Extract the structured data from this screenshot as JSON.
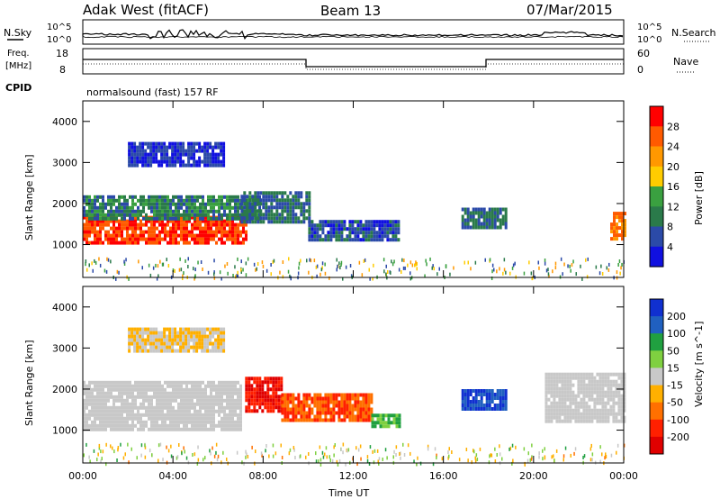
{
  "header": {
    "station": "Adak West (fitACF)",
    "beam": "Beam 13",
    "date": "07/Mar/2015"
  },
  "panel_labels": {
    "nsky": "N.Sky",
    "nsearch": "N.Search",
    "freq_line1": "Freq.",
    "freq_line2": "[MHz]",
    "nave": "Nave",
    "cpid": "CPID",
    "cpid_value": "normalsound (fast) 157 RF"
  },
  "noise_axis": {
    "left_ticks": [
      "10^5",
      "10^0"
    ],
    "right_ticks": [
      "10^5",
      "10^0"
    ]
  },
  "freq_axis": {
    "left_ticks": [
      "18",
      "8"
    ],
    "right_ticks": [
      "60",
      "0"
    ]
  },
  "chart_data": [
    {
      "type": "heatmap",
      "name": "power-panel",
      "ylabel": "Slant Range [km]",
      "yticks": [
        "4000",
        "3000",
        "2000",
        "1000"
      ],
      "ylim": [
        200,
        4500
      ],
      "xlim": [
        0,
        24
      ],
      "colorbar": {
        "label": "Power [dB]",
        "ticks": [
          "28",
          "24",
          "20",
          "16",
          "12",
          "8",
          "4"
        ],
        "colors": [
          "#ff0000",
          "#ff5a00",
          "#ff9800",
          "#ffcc00",
          "#3aa040",
          "#2a7a4a",
          "#2b4aa8",
          "#1010e0"
        ]
      },
      "bands": [
        {
          "x0": 0.0,
          "x1": 7.2,
          "y0": 1000,
          "y1": 1700,
          "value": 28
        },
        {
          "x0": 0.0,
          "x1": 7.8,
          "y0": 1650,
          "y1": 2200,
          "value": 10
        },
        {
          "x0": 7.0,
          "x1": 10.0,
          "y0": 1550,
          "y1": 2300,
          "value": 8
        },
        {
          "x0": 10.0,
          "x1": 14.0,
          "y0": 1100,
          "y1": 1600,
          "value": 6
        },
        {
          "x0": 2.0,
          "x1": 6.3,
          "y0": 2900,
          "y1": 3500,
          "value": 4
        },
        {
          "x0": 16.8,
          "x1": 18.8,
          "y0": 1400,
          "y1": 1900,
          "value": 8
        },
        {
          "x0": 23.4,
          "x1": 24.0,
          "y0": 1100,
          "y1": 1800,
          "value": 24
        }
      ]
    },
    {
      "type": "heatmap",
      "name": "velocity-panel",
      "ylabel": "Slant Range [km]",
      "yticks": [
        "4000",
        "3000",
        "2000",
        "1000"
      ],
      "ylim": [
        200,
        4500
      ],
      "xlim": [
        0,
        24
      ],
      "colorbar": {
        "label": "Velocity [m s^-1]",
        "ticks": [
          "200",
          "100",
          "50",
          "15",
          "-15",
          "-50",
          "-100",
          "-200"
        ],
        "colors": [
          "#1030d0",
          "#2060c0",
          "#20a040",
          "#7fd040",
          "#c8c8c8",
          "#ffb000",
          "#ff7000",
          "#ff2000",
          "#e00000"
        ]
      },
      "bands": [
        {
          "x0": 0.0,
          "x1": 7.0,
          "y0": 1000,
          "y1": 2200,
          "value": 0
        },
        {
          "x0": 7.2,
          "x1": 8.8,
          "y0": 1500,
          "y1": 2300,
          "value": -200
        },
        {
          "x0": 8.8,
          "x1": 12.8,
          "y0": 1200,
          "y1": 1900,
          "value": -100
        },
        {
          "x0": 12.8,
          "x1": 14.0,
          "y0": 1050,
          "y1": 1400,
          "value": 50
        },
        {
          "x0": 16.8,
          "x1": 18.8,
          "y0": 1500,
          "y1": 2000,
          "value": 200
        },
        {
          "x0": 20.5,
          "x1": 24.0,
          "y0": 1200,
          "y1": 2400,
          "value": 0
        },
        {
          "x0": 2.0,
          "x1": 6.3,
          "y0": 2900,
          "y1": 3500,
          "value": -15
        }
      ]
    }
  ],
  "xaxis": {
    "ticks": [
      "00:00",
      "04:00",
      "08:00",
      "12:00",
      "16:00",
      "20:00",
      "00:00"
    ],
    "label": "Time UT"
  }
}
